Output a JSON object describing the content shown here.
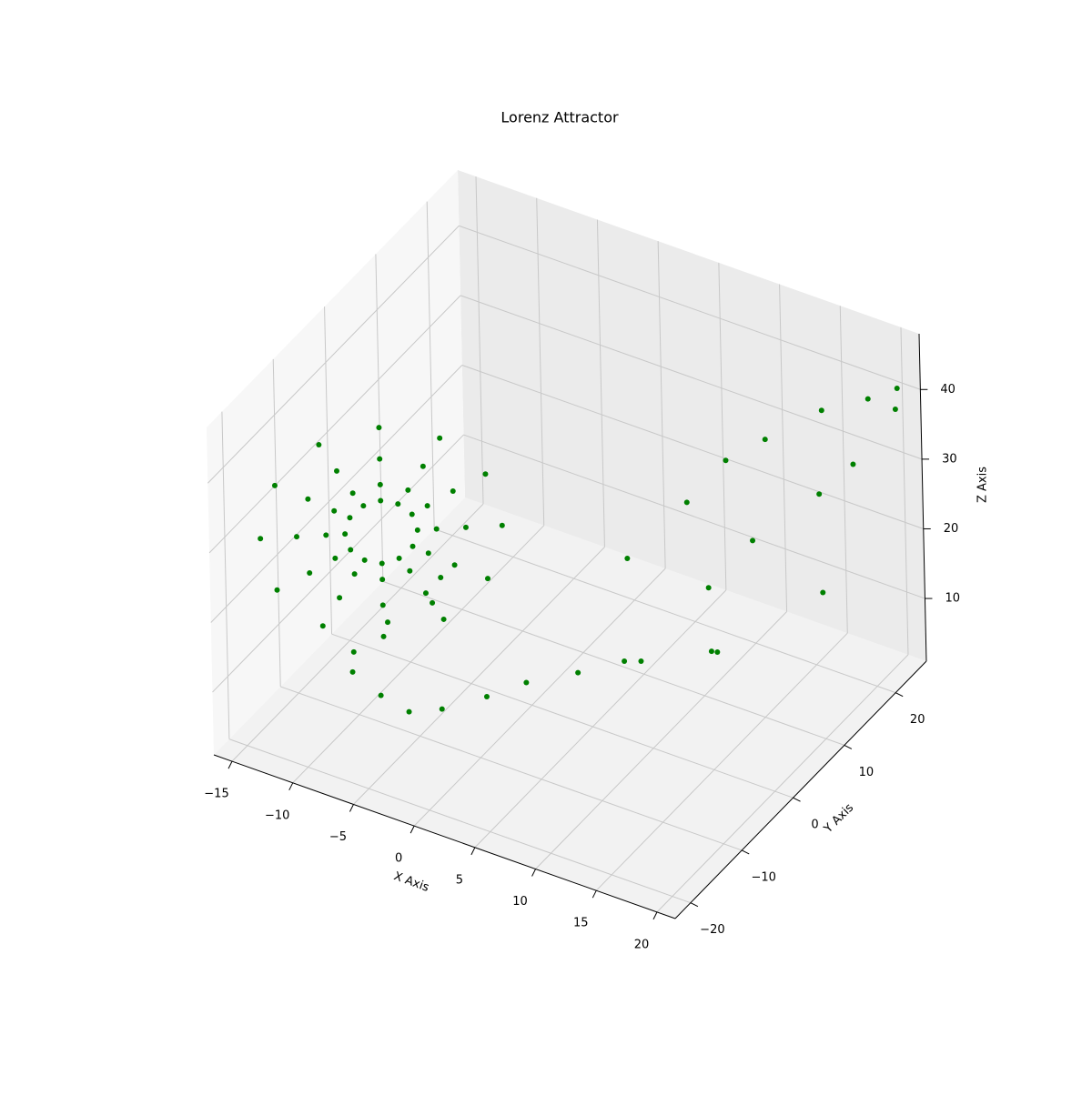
{
  "chart_data": {
    "type": "scatter3d",
    "title": "Lorenz Attractor",
    "x_label": "X Axis",
    "y_label": "Y Axis",
    "z_label": "Z Axis",
    "xlim": [
      -16.5,
      21.5
    ],
    "ylim": [
      -23,
      26
    ],
    "zlim": [
      1,
      48
    ],
    "xticks": [
      {
        "value": -15,
        "label": "−15"
      },
      {
        "value": -10,
        "label": "−10"
      },
      {
        "value": -5,
        "label": "−5"
      },
      0,
      5,
      10,
      15,
      20
    ],
    "yticks": [
      {
        "value": -20,
        "label": "−20"
      },
      {
        "value": -10,
        "label": "−10"
      },
      0,
      10,
      20
    ],
    "zticks": [
      10,
      20,
      30,
      40
    ],
    "grid": true,
    "series": [
      {
        "color": "#008000",
        "x": [
          -1.5,
          -2.4,
          -5,
          -8.5,
          -12,
          -14.6,
          -15.5,
          -14.6,
          -12,
          -8.5,
          -5,
          -2.4,
          -3.6,
          -4.3,
          -6,
          -8.5,
          -11,
          -12.7,
          -13.4,
          -12.7,
          -11,
          -8.5,
          -6,
          -4.3,
          -5.3,
          -5.8,
          -6.9,
          -8.5,
          -10.1,
          -11.2,
          -11.7,
          -11.2,
          -10.1,
          -8.5,
          -6.9,
          -5.8,
          -6.4,
          -6.7,
          -7.5,
          -8.5,
          -9.5,
          -10.3,
          -10.6,
          -10.3,
          -9.5,
          -8.5,
          -7.5,
          -6.7,
          20,
          22,
          18,
          15,
          21,
          19,
          12,
          10,
          16,
          20,
          14,
          8,
          6,
          15,
          10,
          12,
          6,
          3,
          0,
          -2,
          -4,
          -5,
          -6,
          -7,
          -6,
          -4,
          -2,
          -3
        ],
        "y": [
          -1.5,
          -2.4,
          -5,
          -8.5,
          -12,
          -14.6,
          -15.5,
          -14.6,
          -12,
          -8.5,
          -5,
          -2.4,
          -3.6,
          -4.3,
          -6,
          -8.5,
          -11,
          -12.7,
          -13.4,
          -12.7,
          -11,
          -8.5,
          -6,
          -4.3,
          -5.3,
          -5.8,
          -6.9,
          -8.5,
          -10.1,
          -11.2,
          -11.7,
          -11.2,
          -10.1,
          -8.5,
          -6.9,
          -5.8,
          -6.4,
          -6.7,
          -7.5,
          -8.5,
          -9.5,
          -10.3,
          -10.6,
          -10.3,
          -9.5,
          -8.5,
          -7.5,
          -6.7,
          25,
          20,
          24,
          22,
          14,
          12,
          18,
          15,
          6,
          10,
          2,
          12,
          5,
          0,
          -2,
          8,
          4,
          2,
          -1,
          -4,
          -8,
          -12,
          -15,
          -18,
          -20,
          -18,
          -14,
          -10
        ],
        "z": [
          27,
          34.5,
          40,
          42,
          40,
          34.5,
          27,
          19.5,
          14,
          12,
          14,
          19.5,
          27,
          32.3,
          36.1,
          37.5,
          36.1,
          32.3,
          27,
          21.7,
          17.9,
          16.5,
          17.9,
          21.7,
          27,
          30.4,
          32.8,
          33.8,
          32.8,
          30.4,
          27,
          23.6,
          21.2,
          20.2,
          21.2,
          23.6,
          27,
          29.3,
          30.9,
          31.5,
          30.9,
          29.3,
          27,
          24.7,
          23.1,
          22.5,
          23.1,
          24.7,
          40,
          42,
          38,
          36,
          38,
          34,
          33,
          31,
          30,
          22,
          25,
          26,
          22,
          18,
          15,
          10,
          8,
          6,
          5,
          4,
          4,
          6,
          10,
          15,
          20,
          24,
          25,
          25
        ]
      }
    ]
  }
}
